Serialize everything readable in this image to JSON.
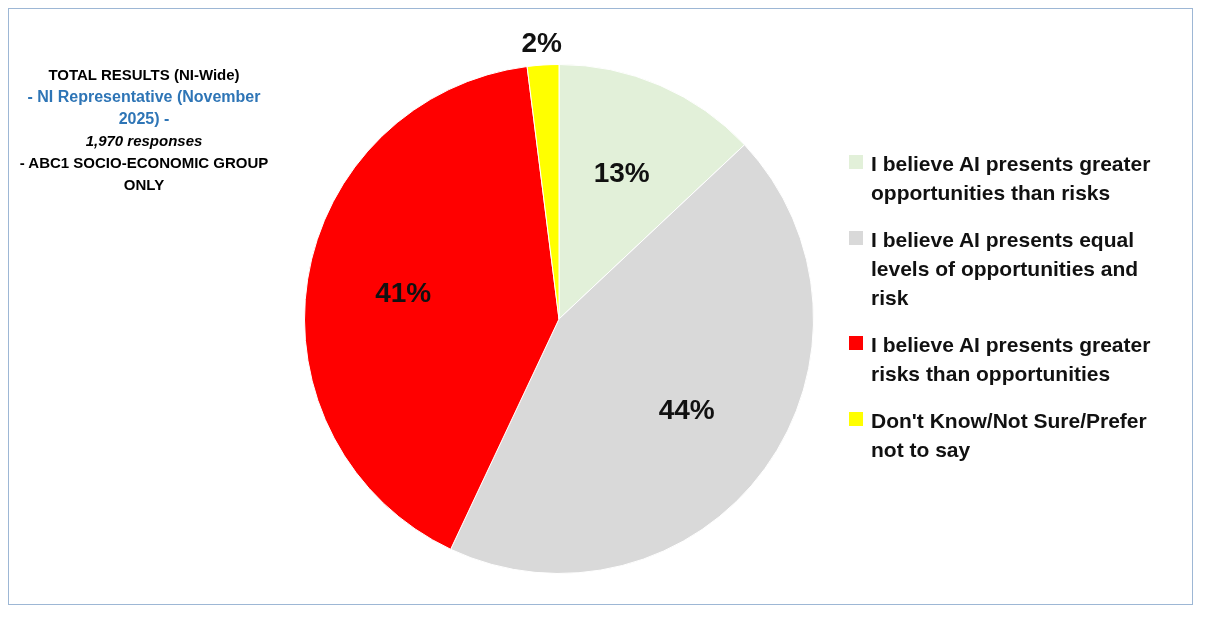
{
  "chart_data": {
    "type": "pie",
    "title": "TOTAL RESULTS (NI-Wide)",
    "subtitle": "- NI Representative (November 2025) -",
    "annotations": [
      "1,970 responses",
      "- ABC1 SOCIO-ECONOMIC GROUP ONLY"
    ],
    "categories": [
      "I believe AI presents greater opportunities than risks",
      "I believe AI presents equal levels of opportunities and risk",
      "I believe AI presents greater risks than opportunities",
      "Don't Know/Not Sure/Prefer not to say"
    ],
    "values": [
      13,
      44,
      41,
      2
    ],
    "value_labels": [
      "13%",
      "44%",
      "41%",
      "2%"
    ],
    "colors": [
      "#e2f0d9",
      "#d9d9d9",
      "#ff0000",
      "#ffff00"
    ],
    "legend": "right"
  }
}
